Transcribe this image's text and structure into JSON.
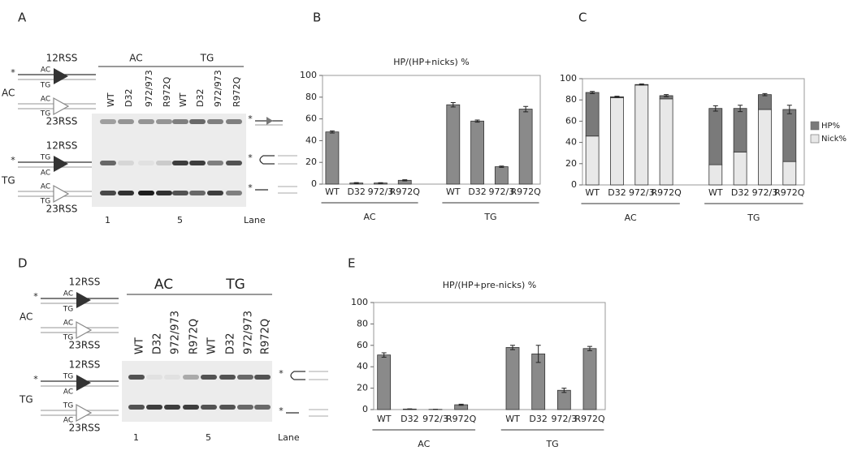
{
  "panel_labels": [
    "A",
    "B",
    "C",
    "D",
    "E"
  ],
  "gel_a": {
    "groups": [
      "AC",
      "TG"
    ],
    "lanes": [
      "WT",
      "D32",
      "972/973",
      "R972Q",
      "WT",
      "D32",
      "972/973",
      "R972Q"
    ],
    "lane_numbers": [
      "1",
      "5"
    ],
    "lane_axis_label": "Lane",
    "marker": "*",
    "diagrams": [
      {
        "substrate": "AC",
        "rss12": "12RSS",
        "strands_12": [
          "AC",
          "TG"
        ],
        "strands_23": [
          "AC",
          "TG"
        ],
        "rss23": "23RSS"
      },
      {
        "substrate": "TG",
        "rss12": "12RSS",
        "strands_12": [
          "TG",
          "AC"
        ],
        "strands_23": [
          "AC",
          "TG"
        ],
        "rss23": "23RSS"
      }
    ]
  },
  "gel_d": {
    "groups": [
      "AC",
      "TG"
    ],
    "lanes": [
      "WT",
      "D32",
      "972/973",
      "R972Q",
      "WT",
      "D32",
      "972/973",
      "R972Q"
    ],
    "lane_numbers": [
      "1",
      "5"
    ],
    "lane_axis_label": "Lane",
    "marker": "*",
    "diagrams": [
      {
        "substrate": "AC",
        "rss12": "12RSS",
        "strands_12": [
          "AC",
          "TG"
        ],
        "strands_23": [
          "AC",
          "TG"
        ],
        "rss23": "23RSS"
      },
      {
        "substrate": "TG",
        "rss12": "12RSS",
        "strands_12": [
          "TG",
          "AC"
        ],
        "strands_23": [
          "TG",
          "AC"
        ],
        "rss23": "23RSS"
      }
    ]
  },
  "chart_data": [
    {
      "type": "bar",
      "title": "HP/(HP+nicks) %",
      "categories": [
        "WT",
        "D32",
        "972/3",
        "R972Q",
        "WT",
        "D32",
        "972/3",
        "R972Q"
      ],
      "groups": [
        "AC",
        "TG"
      ],
      "values": [
        48,
        1,
        1,
        3.5,
        73,
        58,
        16,
        69
      ],
      "errors": [
        1,
        0.4,
        0.3,
        0.5,
        2,
        1,
        0.6,
        2.5
      ],
      "color": "#8a8a8a",
      "ylim": [
        0,
        100
      ],
      "yticks": [
        0,
        20,
        40,
        60,
        80,
        100
      ]
    },
    {
      "type": "stacked_bar",
      "categories": [
        "WT",
        "D32",
        "972/3",
        "R972Q",
        "WT",
        "D32",
        "972/3",
        "R972Q"
      ],
      "groups": [
        "AC",
        "TG"
      ],
      "series": [
        {
          "name": "Nick%",
          "color": "#e8e8e8",
          "values": [
            46,
            82,
            94,
            81,
            19,
            31,
            71,
            22
          ]
        },
        {
          "name": "HP%",
          "color": "#7a7a7a",
          "values": [
            41,
            1,
            0.5,
            3,
            53,
            41,
            14,
            49
          ],
          "errors": [
            1,
            0.5,
            0.5,
            1,
            2.5,
            3,
            1,
            4
          ]
        }
      ],
      "ylim": [
        0,
        100
      ],
      "yticks": [
        0,
        20,
        40,
        60,
        80,
        100
      ],
      "legend": "right"
    },
    {
      "type": "bar",
      "title": "HP/(HP+pre-nicks) %",
      "categories": [
        "WT",
        "D32",
        "972/3",
        "R972Q",
        "WT",
        "D32",
        "972/3",
        "R972Q"
      ],
      "groups": [
        "AC",
        "TG"
      ],
      "values": [
        51,
        0.5,
        0.2,
        4.5,
        58,
        52,
        18,
        57
      ],
      "errors": [
        2,
        0.2,
        0.1,
        0.5,
        2,
        8,
        2,
        2
      ],
      "color": "#8a8a8a",
      "ylim": [
        0,
        100
      ],
      "yticks": [
        0,
        20,
        40,
        60,
        80,
        100
      ]
    }
  ]
}
